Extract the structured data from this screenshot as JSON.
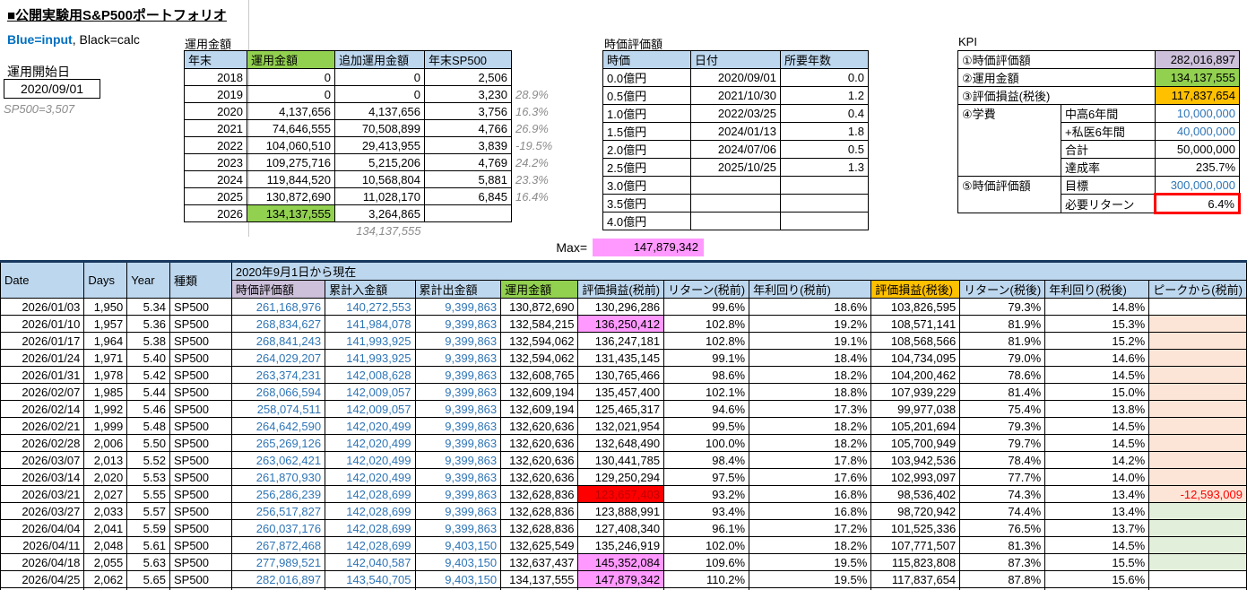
{
  "page": {
    "title": "■公開実験用S&P500ポートフォリオ",
    "legend_blue": "Blue=input",
    "legend_rest": ", Black=calc",
    "start_label": "運用開始日",
    "start_date": "2020/09/01",
    "sp500_note": "SP500=3,507"
  },
  "colors": {
    "header_blue": "#BDD7EE",
    "accent_green": "#92D050",
    "accent_purple": "#CCC0DA",
    "accent_orange": "#FFC000",
    "highlight_pink": "#FF99FF",
    "highlight_red": "#FF0000",
    "band_peach": "#FCE4D6",
    "band_green": "#E2EFDA",
    "input_blue": "#2E75B6"
  },
  "unyo_table": {
    "label": "運用金額",
    "headers": [
      "年末",
      "運用金額",
      "追加運用金額",
      "年末SP500"
    ],
    "rows": [
      {
        "y": "2018",
        "a": "0",
        "add": "0",
        "sp": "2,506",
        "pct": "",
        "hl": false
      },
      {
        "y": "2019",
        "a": "0",
        "add": "0",
        "sp": "3,230",
        "pct": "28.9%",
        "hl": false
      },
      {
        "y": "2020",
        "a": "4,137,656",
        "add": "4,137,656",
        "sp": "3,756",
        "pct": "16.3%",
        "hl": false
      },
      {
        "y": "2021",
        "a": "74,646,555",
        "add": "70,508,899",
        "sp": "4,766",
        "pct": "26.9%",
        "hl": false
      },
      {
        "y": "2022",
        "a": "104,060,510",
        "add": "29,413,955",
        "sp": "3,839",
        "pct": "-19.5%",
        "hl": false
      },
      {
        "y": "2023",
        "a": "109,275,716",
        "add": "5,215,206",
        "sp": "4,769",
        "pct": "24.2%",
        "hl": false
      },
      {
        "y": "2024",
        "a": "119,844,520",
        "add": "10,568,804",
        "sp": "5,881",
        "pct": "23.3%",
        "hl": false
      },
      {
        "y": "2025",
        "a": "130,872,690",
        "add": "11,028,170",
        "sp": "6,845",
        "pct": "16.4%",
        "hl": false
      },
      {
        "y": "2026",
        "a": "134,137,555",
        "add": "3,264,865",
        "sp": "",
        "pct": "",
        "hl": true
      }
    ],
    "footer_note": "134,137,555"
  },
  "jika_table": {
    "label": "時価評価額",
    "headers": [
      "時価",
      "日付",
      "所要年数"
    ],
    "rows": [
      [
        "0.0億円",
        "2020/09/01",
        "0.0"
      ],
      [
        "0.5億円",
        "2021/10/30",
        "1.2"
      ],
      [
        "1.0億円",
        "2022/03/25",
        "0.4"
      ],
      [
        "1.5億円",
        "2024/01/13",
        "1.8"
      ],
      [
        "2.0億円",
        "2024/07/06",
        "0.5"
      ],
      [
        "2.5億円",
        "2025/10/25",
        "1.3"
      ],
      [
        "3.0億円",
        "",
        ""
      ],
      [
        "3.5億円",
        "",
        ""
      ],
      [
        "4.0億円",
        "",
        ""
      ]
    ]
  },
  "kpi": {
    "label": "KPI",
    "r1_label": "①時価評価額",
    "r1_value": "282,016,897",
    "r2_label": "②運用金額",
    "r2_value": "134,137,555",
    "r3_label": "③評価損益(税後)",
    "r3_value": "117,837,654",
    "r4_label": "④学費",
    "r4a_label": "中高6年間",
    "r4a_value": "10,000,000",
    "r4b_label": "+私医6年間",
    "r4b_value": "40,000,000",
    "r4c_label": "合計",
    "r4c_value": "50,000,000",
    "r4d_label": "達成率",
    "r4d_value": "235.7%",
    "r5_label": "⑤時価評価額",
    "r5a_label": "目標",
    "r5a_value": "300,000,000",
    "r5b_label": "必要リターン",
    "r5b_value": "6.4%"
  },
  "max": {
    "label": "Max=",
    "value": "147,879,342"
  },
  "main_table": {
    "fixed_headers": [
      "Date",
      "Days",
      "Year",
      "種類"
    ],
    "group_header": "2020年9月1日から現在",
    "sub_headers": [
      {
        "label": "時価評価額",
        "bg": "hdr-purple"
      },
      {
        "label": "累計入金額",
        "bg": "hdr"
      },
      {
        "label": "累計出金額",
        "bg": "hdr"
      },
      {
        "label": "運用金額",
        "bg": "hdr-green"
      },
      {
        "label": "評価損益(税前)",
        "bg": "hdr"
      },
      {
        "label": "リターン(税前)",
        "bg": "hdr"
      },
      {
        "label": "年利回り(税前)",
        "bg": "hdr"
      },
      {
        "label": "評価損益(税後)",
        "bg": "hdr-orange"
      },
      {
        "label": "リターン(税後)",
        "bg": "hdr"
      },
      {
        "label": "年利回り(税後)",
        "bg": "hdr"
      },
      {
        "label": "ピークから(税前)",
        "bg": "hdr"
      }
    ],
    "rows": [
      {
        "c": [
          "2026/01/03",
          "1,950",
          "5.34",
          "SP500",
          "261,168,976",
          "140,272,553",
          "9,399,863",
          "130,872,690",
          "130,296,286",
          "99.6%",
          "18.6%",
          "103,826,595",
          "79.3%",
          "14.8%",
          ""
        ],
        "pnl": "",
        "peak": "white"
      },
      {
        "c": [
          "2026/01/10",
          "1,957",
          "5.36",
          "SP500",
          "268,834,627",
          "141,984,078",
          "9,399,863",
          "132,584,215",
          "136,250,412",
          "102.8%",
          "19.2%",
          "108,571,141",
          "81.9%",
          "15.3%",
          ""
        ],
        "pnl": "pink",
        "peak": "peach"
      },
      {
        "c": [
          "2026/01/17",
          "1,964",
          "5.38",
          "SP500",
          "268,841,243",
          "141,993,925",
          "9,399,863",
          "132,594,062",
          "136,247,181",
          "102.8%",
          "19.1%",
          "108,568,566",
          "81.9%",
          "15.2%",
          ""
        ],
        "pnl": "",
        "peak": "peach"
      },
      {
        "c": [
          "2026/01/24",
          "1,971",
          "5.40",
          "SP500",
          "264,029,207",
          "141,993,925",
          "9,399,863",
          "132,594,062",
          "131,435,145",
          "99.1%",
          "18.4%",
          "104,734,095",
          "79.0%",
          "14.6%",
          ""
        ],
        "pnl": "",
        "peak": "peach"
      },
      {
        "c": [
          "2026/01/31",
          "1,978",
          "5.42",
          "SP500",
          "263,374,231",
          "142,008,628",
          "9,399,863",
          "132,608,765",
          "130,765,466",
          "98.6%",
          "18.2%",
          "104,200,462",
          "78.6%",
          "14.5%",
          ""
        ],
        "pnl": "",
        "peak": "peach"
      },
      {
        "c": [
          "2026/02/07",
          "1,985",
          "5.44",
          "SP500",
          "268,066,594",
          "142,009,057",
          "9,399,863",
          "132,609,194",
          "135,457,400",
          "102.1%",
          "18.8%",
          "107,939,229",
          "81.4%",
          "15.0%",
          ""
        ],
        "pnl": "",
        "peak": "peach"
      },
      {
        "c": [
          "2026/02/14",
          "1,992",
          "5.46",
          "SP500",
          "258,074,511",
          "142,009,057",
          "9,399,863",
          "132,609,194",
          "125,465,317",
          "94.6%",
          "17.3%",
          "99,977,038",
          "75.4%",
          "13.8%",
          ""
        ],
        "pnl": "",
        "peak": "peach"
      },
      {
        "c": [
          "2026/02/21",
          "1,999",
          "5.48",
          "SP500",
          "264,642,590",
          "142,020,499",
          "9,399,863",
          "132,620,636",
          "132,021,954",
          "99.5%",
          "18.2%",
          "105,201,694",
          "79.3%",
          "14.5%",
          ""
        ],
        "pnl": "",
        "peak": "peach"
      },
      {
        "c": [
          "2026/02/28",
          "2,006",
          "5.50",
          "SP500",
          "265,269,126",
          "142,020,499",
          "9,399,863",
          "132,620,636",
          "132,648,490",
          "100.0%",
          "18.2%",
          "105,700,949",
          "79.7%",
          "14.5%",
          ""
        ],
        "pnl": "",
        "peak": "peach"
      },
      {
        "c": [
          "2026/03/07",
          "2,013",
          "5.52",
          "SP500",
          "263,062,421",
          "142,020,499",
          "9,399,863",
          "132,620,636",
          "130,441,785",
          "98.4%",
          "17.8%",
          "103,942,536",
          "78.4%",
          "14.2%",
          ""
        ],
        "pnl": "",
        "peak": "peach"
      },
      {
        "c": [
          "2026/03/14",
          "2,020",
          "5.53",
          "SP500",
          "261,870,930",
          "142,020,499",
          "9,399,863",
          "132,620,636",
          "129,250,294",
          "97.5%",
          "17.6%",
          "102,993,097",
          "77.7%",
          "14.0%",
          ""
        ],
        "pnl": "",
        "peak": "peach"
      },
      {
        "c": [
          "2026/03/21",
          "2,027",
          "5.55",
          "SP500",
          "256,286,239",
          "142,028,699",
          "9,399,863",
          "132,628,836",
          "123,657,403",
          "93.2%",
          "16.8%",
          "98,536,402",
          "74.3%",
          "13.4%",
          "-12,593,009"
        ],
        "pnl": "red",
        "peak": "peach-red"
      },
      {
        "c": [
          "2026/03/27",
          "2,033",
          "5.57",
          "SP500",
          "256,517,827",
          "142,028,699",
          "9,399,863",
          "132,628,836",
          "123,888,991",
          "93.4%",
          "16.8%",
          "98,720,942",
          "74.4%",
          "13.4%",
          ""
        ],
        "pnl": "",
        "peak": "green"
      },
      {
        "c": [
          "2026/04/04",
          "2,041",
          "5.59",
          "SP500",
          "260,037,176",
          "142,028,699",
          "9,399,863",
          "132,628,836",
          "127,408,340",
          "96.1%",
          "17.2%",
          "101,525,336",
          "76.5%",
          "13.7%",
          ""
        ],
        "pnl": "",
        "peak": "green"
      },
      {
        "c": [
          "2026/04/11",
          "2,048",
          "5.61",
          "SP500",
          "267,872,468",
          "142,028,699",
          "9,403,150",
          "132,625,549",
          "135,246,919",
          "102.0%",
          "18.2%",
          "107,771,507",
          "81.3%",
          "14.5%",
          ""
        ],
        "pnl": "",
        "peak": "green"
      },
      {
        "c": [
          "2026/04/18",
          "2,055",
          "5.63",
          "SP500",
          "277,989,521",
          "142,040,587",
          "9,403,150",
          "132,637,437",
          "145,352,084",
          "109.6%",
          "19.5%",
          "115,823,808",
          "87.3%",
          "15.5%",
          ""
        ],
        "pnl": "pink",
        "peak": "green"
      },
      {
        "c": [
          "2026/04/25",
          "2,062",
          "5.65",
          "SP500",
          "282,016,897",
          "143,540,705",
          "9,403,150",
          "134,137,555",
          "147,879,342",
          "110.2%",
          "19.5%",
          "117,837,654",
          "87.8%",
          "15.6%",
          ""
        ],
        "pnl": "pink",
        "peak": "white"
      }
    ]
  }
}
